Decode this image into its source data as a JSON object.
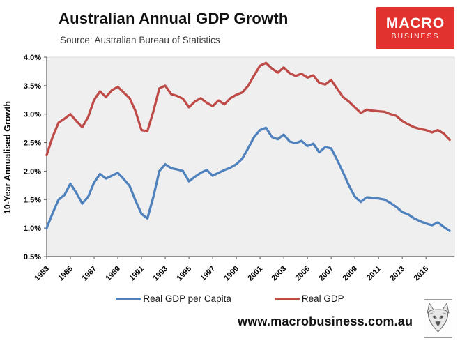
{
  "header": {
    "title": "Australian Annual GDP Growth",
    "source": "Source: Australian Bureau of Statistics"
  },
  "logo": {
    "line1": "MACRO",
    "line2": "BUSINESS",
    "bg_color": "#e2322e",
    "text_color": "#ffffff"
  },
  "footer": {
    "url": "www.macrobusiness.com.au",
    "fox_icon": "fox-head-icon"
  },
  "chart_data": {
    "type": "line",
    "title": "Australian Annual GDP Growth",
    "xlabel": "",
    "ylabel": "10-Year Annualised Growth",
    "ylim": [
      0.5,
      4.0
    ],
    "xlim": [
      1983,
      2017.4
    ],
    "grid": false,
    "plot_bg": "#efefef",
    "axis_color": "#595959",
    "legend_position": "bottom",
    "yticks": [
      0.5,
      1.0,
      1.5,
      2.0,
      2.5,
      3.0,
      3.5,
      4.0
    ],
    "ytick_labels": [
      "0.5%",
      "1.0%",
      "1.5%",
      "2.0%",
      "2.5%",
      "3.0%",
      "3.5%",
      "4.0%"
    ],
    "xticks": [
      1983,
      1985,
      1987,
      1989,
      1991,
      1993,
      1995,
      1997,
      1999,
      2001,
      2003,
      2005,
      2007,
      2009,
      2011,
      2013,
      2015
    ],
    "xtick_labels": [
      "1983",
      "1985",
      "1987",
      "1989",
      "1991",
      "1993",
      "1995",
      "1997",
      "1999",
      "2001",
      "2003",
      "2005",
      "2007",
      "2009",
      "2011",
      "2013",
      "2015"
    ],
    "x": [
      1983,
      1983.5,
      1984,
      1984.5,
      1985,
      1985.5,
      1986,
      1986.5,
      1987,
      1987.5,
      1988,
      1988.5,
      1989,
      1989.5,
      1990,
      1990.5,
      1991,
      1991.5,
      1992,
      1992.5,
      1993,
      1993.5,
      1994,
      1994.5,
      1995,
      1995.5,
      1996,
      1996.5,
      1997,
      1997.5,
      1998,
      1998.5,
      1999,
      1999.5,
      2000,
      2000.5,
      2001,
      2001.5,
      2002,
      2002.5,
      2003,
      2003.5,
      2004,
      2004.5,
      2005,
      2005.5,
      2006,
      2006.5,
      2007,
      2007.5,
      2008,
      2008.5,
      2009,
      2009.5,
      2010,
      2010.5,
      2011,
      2011.5,
      2012,
      2012.5,
      2013,
      2013.5,
      2014,
      2014.5,
      2015,
      2015.5,
      2016,
      2016.5,
      2017
    ],
    "series": [
      {
        "name": "Real GDP per Capita",
        "color": "#4f81bd",
        "values": [
          1.0,
          1.26,
          1.5,
          1.58,
          1.78,
          1.62,
          1.43,
          1.55,
          1.8,
          1.95,
          1.87,
          1.92,
          1.97,
          1.86,
          1.74,
          1.48,
          1.25,
          1.17,
          1.55,
          2.0,
          2.12,
          2.05,
          2.03,
          2.0,
          1.82,
          1.9,
          1.97,
          2.02,
          1.92,
          1.97,
          2.02,
          2.06,
          2.12,
          2.22,
          2.4,
          2.6,
          2.72,
          2.76,
          2.6,
          2.56,
          2.64,
          2.52,
          2.49,
          2.53,
          2.44,
          2.48,
          2.33,
          2.42,
          2.4,
          2.2,
          1.98,
          1.75,
          1.55,
          1.46,
          1.54,
          1.53,
          1.52,
          1.5,
          1.44,
          1.37,
          1.28,
          1.24,
          1.17,
          1.12,
          1.08,
          1.05,
          1.1,
          1.02,
          0.95
        ]
      },
      {
        "name": "Real GDP",
        "color": "#be4b48",
        "values": [
          2.28,
          2.6,
          2.85,
          2.92,
          3.0,
          2.88,
          2.77,
          2.95,
          3.25,
          3.4,
          3.3,
          3.42,
          3.48,
          3.38,
          3.28,
          3.05,
          2.72,
          2.7,
          3.05,
          3.45,
          3.5,
          3.35,
          3.32,
          3.27,
          3.12,
          3.22,
          3.28,
          3.2,
          3.14,
          3.24,
          3.17,
          3.28,
          3.34,
          3.38,
          3.5,
          3.68,
          3.85,
          3.9,
          3.8,
          3.73,
          3.82,
          3.72,
          3.67,
          3.71,
          3.64,
          3.68,
          3.55,
          3.52,
          3.6,
          3.45,
          3.3,
          3.22,
          3.12,
          3.02,
          3.08,
          3.06,
          3.05,
          3.04,
          3.0,
          2.97,
          2.88,
          2.82,
          2.77,
          2.74,
          2.72,
          2.68,
          2.72,
          2.66,
          2.55
        ]
      }
    ]
  }
}
